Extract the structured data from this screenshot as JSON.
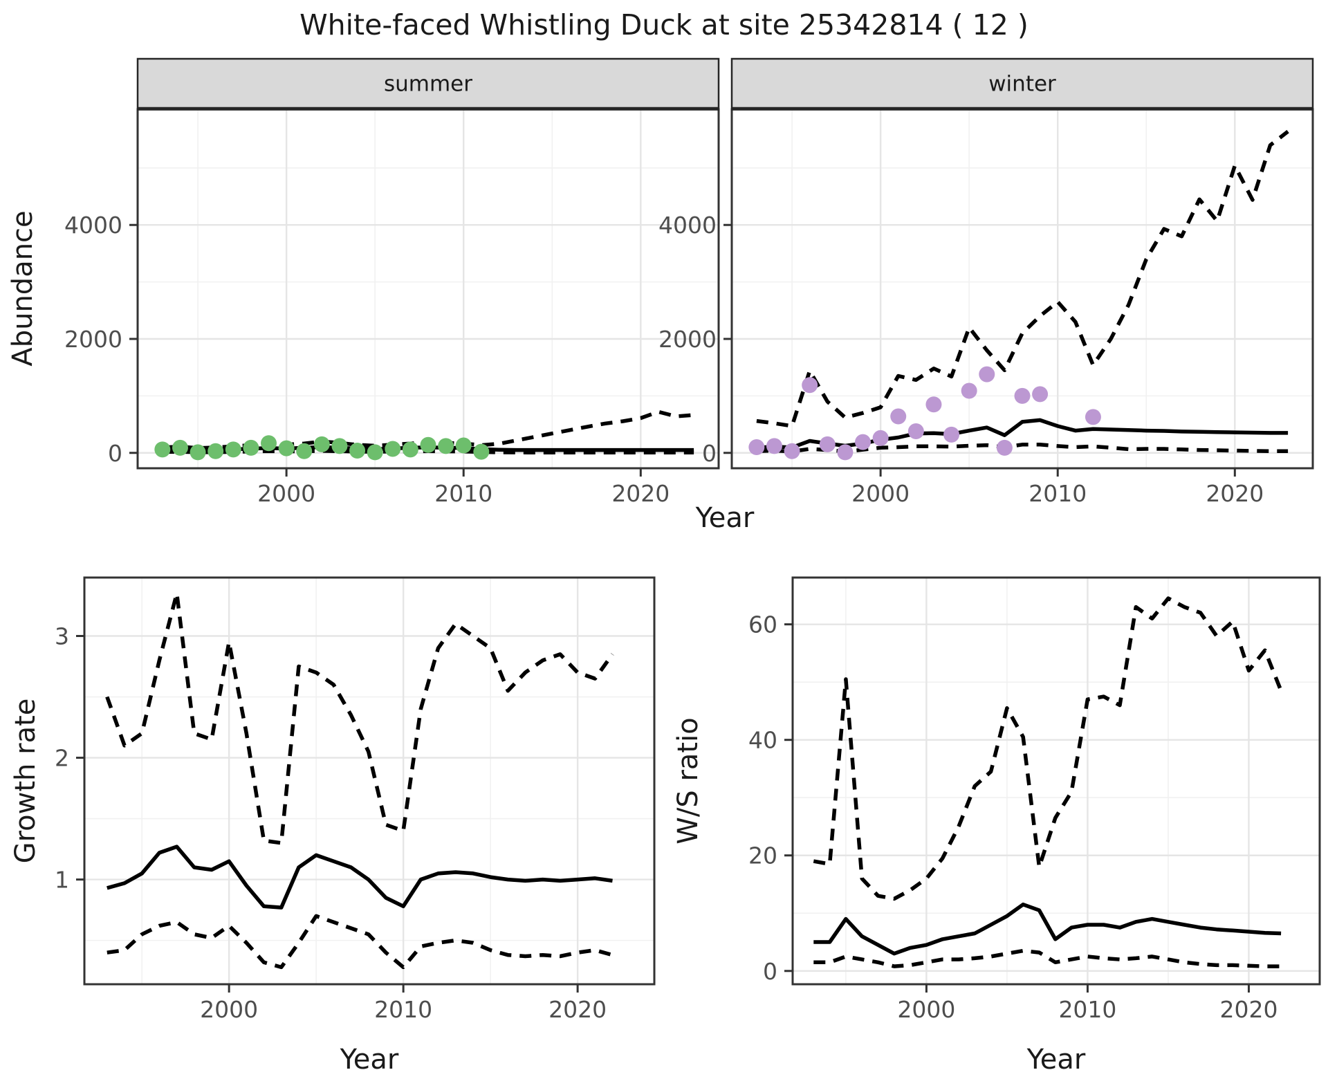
{
  "title": "White-faced Whistling Duck at site 25342814 ( 12 )",
  "colors": {
    "summer_points": "#6dbe6c",
    "winter_points": "#bc98d2",
    "line": "#000000",
    "strip_bg": "#d9d9d9",
    "strip_border": "#262626",
    "frame": "#333333",
    "axis_text": "#4d4d4d",
    "title_text": "#1a1a1a",
    "grid_major": "#e5e5e5",
    "grid_minor": "#f1f1f1"
  },
  "chart_data": [
    {
      "id": "abundance-summer",
      "type": "line",
      "strip": "summer",
      "xlabel": "Year",
      "ylabel": "Abundance",
      "xlim": [
        1991.6,
        2024.4
      ],
      "ylim": [
        -270,
        6030
      ],
      "xticks": [
        2000,
        2010,
        2020
      ],
      "yticks": [
        0,
        2000,
        4000
      ],
      "xminor": [
        1995,
        2005,
        2015
      ],
      "yminor": [
        1000,
        3000,
        5000
      ],
      "series": [
        {
          "name": "upper-ci",
          "style": "dashed",
          "x": [
            1993,
            1994,
            1995,
            1996,
            1997,
            1998,
            1999,
            2000,
            2001,
            2002,
            2003,
            2004,
            2005,
            2006,
            2007,
            2008,
            2009,
            2010,
            2011,
            2012,
            2013,
            2014,
            2015,
            2016,
            2017,
            2018,
            2019,
            2020,
            2021,
            2022,
            2023
          ],
          "values": [
            95,
            110,
            85,
            95,
            115,
            135,
            185,
            145,
            165,
            200,
            175,
            140,
            125,
            145,
            165,
            185,
            175,
            165,
            135,
            160,
            220,
            280,
            340,
            400,
            460,
            515,
            555,
            610,
            720,
            640,
            665
          ]
        },
        {
          "name": "median",
          "style": "solid",
          "x": [
            1993,
            1994,
            1995,
            1996,
            1997,
            1998,
            1999,
            2000,
            2001,
            2002,
            2003,
            2004,
            2005,
            2006,
            2007,
            2008,
            2009,
            2010,
            2011,
            2012,
            2013,
            2014,
            2015,
            2016,
            2017,
            2018,
            2019,
            2020,
            2021,
            2022,
            2023
          ],
          "values": [
            45,
            55,
            45,
            50,
            60,
            75,
            85,
            75,
            90,
            100,
            90,
            75,
            65,
            75,
            90,
            95,
            90,
            85,
            65,
            55,
            50,
            50,
            50,
            50,
            50,
            50,
            50,
            50,
            50,
            50,
            50
          ]
        },
        {
          "name": "lower-ci",
          "style": "dashed",
          "x": [
            1993,
            1994,
            1995,
            1996,
            1997,
            1998,
            1999,
            2000,
            2001,
            2002,
            2003,
            2004,
            2005,
            2006,
            2007,
            2008,
            2009,
            2010,
            2011,
            2012,
            2013,
            2014,
            2015,
            2016,
            2017,
            2018,
            2019,
            2020,
            2021,
            2022,
            2023
          ],
          "values": [
            15,
            20,
            10,
            12,
            18,
            25,
            30,
            25,
            30,
            35,
            30,
            22,
            18,
            25,
            28,
            30,
            28,
            25,
            15,
            10,
            8,
            6,
            5,
            5,
            5,
            5,
            5,
            5,
            5,
            5,
            5
          ]
        },
        {
          "name": "observed-counts",
          "style": "points",
          "color_key": "summer_points",
          "x": [
            1993,
            1994,
            1995,
            1996,
            1997,
            1998,
            1999,
            2000,
            2001,
            2002,
            2003,
            2004,
            2005,
            2006,
            2007,
            2008,
            2009,
            2010,
            2011
          ],
          "values": [
            60,
            90,
            10,
            30,
            60,
            90,
            170,
            80,
            30,
            150,
            120,
            40,
            10,
            70,
            60,
            140,
            120,
            130,
            20
          ]
        }
      ]
    },
    {
      "id": "abundance-winter",
      "type": "line",
      "strip": "winter",
      "xlabel": "Year",
      "ylabel": "Abundance",
      "xlim": [
        1991.6,
        2024.4
      ],
      "ylim": [
        -270,
        6030
      ],
      "xticks": [
        2000,
        2010,
        2020
      ],
      "yticks": [
        0,
        2000,
        4000
      ],
      "xminor": [
        1995,
        2005,
        2015
      ],
      "yminor": [
        1000,
        3000,
        5000
      ],
      "series": [
        {
          "name": "upper-ci",
          "style": "dashed",
          "x": [
            1993,
            1994,
            1995,
            1996,
            1997,
            1998,
            1999,
            2000,
            2001,
            2002,
            2003,
            2004,
            2005,
            2006,
            2007,
            2008,
            2009,
            2010,
            2011,
            2012,
            2013,
            2014,
            2015,
            2016,
            2017,
            2018,
            2019,
            2020,
            2021,
            2022,
            2023
          ],
          "values": [
            560,
            520,
            470,
            1440,
            900,
            620,
            700,
            800,
            1350,
            1280,
            1480,
            1340,
            2200,
            1800,
            1450,
            2100,
            2400,
            2650,
            2300,
            1540,
            2000,
            2600,
            3400,
            3930,
            3800,
            4450,
            4070,
            5040,
            4440,
            5400,
            5640
          ]
        },
        {
          "name": "median",
          "style": "solid",
          "x": [
            1993,
            1994,
            1995,
            1996,
            1997,
            1998,
            1999,
            2000,
            2001,
            2002,
            2003,
            2004,
            2005,
            2006,
            2007,
            2008,
            2009,
            2010,
            2011,
            2012,
            2013,
            2014,
            2015,
            2016,
            2017,
            2018,
            2019,
            2020,
            2021,
            2022,
            2023
          ],
          "values": [
            90,
            110,
            95,
            210,
            165,
            125,
            165,
            230,
            270,
            340,
            345,
            330,
            390,
            445,
            310,
            545,
            575,
            470,
            390,
            420,
            410,
            400,
            390,
            385,
            375,
            370,
            365,
            360,
            355,
            350,
            350
          ]
        },
        {
          "name": "lower-ci",
          "style": "dashed",
          "x": [
            1993,
            1994,
            1995,
            1996,
            1997,
            1998,
            1999,
            2000,
            2001,
            2002,
            2003,
            2004,
            2005,
            2006,
            2007,
            2008,
            2009,
            2010,
            2011,
            2012,
            2013,
            2014,
            2015,
            2016,
            2017,
            2018,
            2019,
            2020,
            2021,
            2022,
            2023
          ],
          "values": [
            30,
            40,
            25,
            70,
            50,
            25,
            55,
            90,
            100,
            115,
            115,
            110,
            125,
            135,
            100,
            145,
            145,
            120,
            100,
            115,
            90,
            65,
            70,
            70,
            60,
            50,
            45,
            40,
            35,
            30,
            30
          ]
        },
        {
          "name": "observed-counts",
          "style": "points",
          "color_key": "winter_points",
          "x": [
            1993,
            1994,
            1995,
            1996,
            1997,
            1998,
            1999,
            2000,
            2001,
            2002,
            2003,
            2004,
            2005,
            2006,
            2007,
            2008,
            2009,
            2012
          ],
          "values": [
            100,
            120,
            30,
            1190,
            150,
            10,
            190,
            260,
            640,
            380,
            850,
            320,
            1090,
            1380,
            90,
            1000,
            1030,
            630
          ]
        }
      ]
    },
    {
      "id": "growth-rate",
      "type": "line",
      "strip": null,
      "xlabel": "Year",
      "ylabel": "Growth rate",
      "xlim": [
        1991.7,
        2024.4
      ],
      "ylim": [
        0.14,
        3.48
      ],
      "xticks": [
        2000,
        2010,
        2020
      ],
      "yticks": [
        1,
        2,
        3
      ],
      "xminor": [
        1995,
        2005,
        2015
      ],
      "yminor": [
        0.5,
        1.5,
        2.5
      ],
      "series": [
        {
          "name": "upper-ci",
          "style": "dashed",
          "x": [
            1993,
            1994,
            1995,
            1996,
            1997,
            1998,
            1999,
            2000,
            2001,
            2002,
            2003,
            2004,
            2005,
            2006,
            2007,
            2008,
            2009,
            2010,
            2011,
            2012,
            2013,
            2014,
            2015,
            2016,
            2017,
            2018,
            2019,
            2020,
            2021,
            2022
          ],
          "values": [
            2.5,
            2.1,
            2.2,
            2.8,
            3.35,
            2.2,
            2.15,
            2.95,
            2.2,
            1.32,
            1.3,
            2.75,
            2.7,
            2.6,
            2.35,
            2.05,
            1.45,
            1.4,
            2.4,
            2.9,
            3.1,
            3.0,
            2.9,
            2.55,
            2.7,
            2.8,
            2.85,
            2.7,
            2.65,
            2.85
          ]
        },
        {
          "name": "median",
          "style": "solid",
          "x": [
            1993,
            1994,
            1995,
            1996,
            1997,
            1998,
            1999,
            2000,
            2001,
            2002,
            2003,
            2004,
            2005,
            2006,
            2007,
            2008,
            2009,
            2010,
            2011,
            2012,
            2013,
            2014,
            2015,
            2016,
            2017,
            2018,
            2019,
            2020,
            2021,
            2022
          ],
          "values": [
            0.93,
            0.97,
            1.05,
            1.22,
            1.27,
            1.1,
            1.08,
            1.15,
            0.95,
            0.78,
            0.77,
            1.1,
            1.2,
            1.15,
            1.1,
            1.0,
            0.85,
            0.78,
            1.0,
            1.05,
            1.06,
            1.05,
            1.02,
            1.0,
            0.99,
            1.0,
            0.99,
            1.0,
            1.01,
            0.99
          ]
        },
        {
          "name": "lower-ci",
          "style": "dashed",
          "x": [
            1993,
            1994,
            1995,
            1996,
            1997,
            1998,
            1999,
            2000,
            2001,
            2002,
            2003,
            2004,
            2005,
            2006,
            2007,
            2008,
            2009,
            2010,
            2011,
            2012,
            2013,
            2014,
            2015,
            2016,
            2017,
            2018,
            2019,
            2020,
            2021,
            2022
          ],
          "values": [
            0.4,
            0.42,
            0.55,
            0.62,
            0.65,
            0.55,
            0.52,
            0.62,
            0.48,
            0.32,
            0.28,
            0.48,
            0.7,
            0.65,
            0.6,
            0.55,
            0.4,
            0.28,
            0.45,
            0.48,
            0.5,
            0.48,
            0.42,
            0.38,
            0.37,
            0.38,
            0.37,
            0.4,
            0.42,
            0.38
          ]
        }
      ]
    },
    {
      "id": "ws-ratio",
      "type": "line",
      "strip": null,
      "xlabel": "Year",
      "ylabel": "W/S ratio",
      "xlim": [
        1991.7,
        2024.4
      ],
      "ylim": [
        -2.3,
        68.1
      ],
      "xticks": [
        2000,
        2010,
        2020
      ],
      "yticks": [
        0,
        20,
        40,
        60
      ],
      "xminor": [
        1995,
        2005,
        2015
      ],
      "yminor": [
        10,
        30,
        50
      ],
      "series": [
        {
          "name": "upper-ci",
          "style": "dashed",
          "x": [
            1993,
            1994,
            1995,
            1996,
            1997,
            1998,
            1999,
            2000,
            2001,
            2002,
            2003,
            2004,
            2005,
            2006,
            2007,
            2008,
            2009,
            2010,
            2011,
            2012,
            2013,
            2014,
            2015,
            2016,
            2017,
            2018,
            2019,
            2020,
            2021,
            2022
          ],
          "values": [
            19,
            18.5,
            50.5,
            16,
            13,
            12.5,
            14,
            16,
            19.5,
            25,
            32,
            34.5,
            45.5,
            40.5,
            18,
            26.5,
            31,
            47,
            47.5,
            46,
            63,
            61,
            64.5,
            63,
            62,
            58,
            60.5,
            52,
            55.5,
            48.5
          ]
        },
        {
          "name": "median",
          "style": "solid",
          "x": [
            1993,
            1994,
            1995,
            1996,
            1997,
            1998,
            1999,
            2000,
            2001,
            2002,
            2003,
            2004,
            2005,
            2006,
            2007,
            2008,
            2009,
            2010,
            2011,
            2012,
            2013,
            2014,
            2015,
            2016,
            2017,
            2018,
            2019,
            2020,
            2021,
            2022
          ],
          "values": [
            5,
            5,
            9,
            6,
            4.5,
            3,
            4,
            4.5,
            5.5,
            6,
            6.5,
            8,
            9.5,
            11.5,
            10.5,
            5.5,
            7.5,
            8,
            8,
            7.5,
            8.5,
            9,
            8.5,
            8,
            7.5,
            7.2,
            7,
            6.8,
            6.6,
            6.5
          ]
        },
        {
          "name": "lower-ci",
          "style": "dashed",
          "x": [
            1993,
            1994,
            1995,
            1996,
            1997,
            1998,
            1999,
            2000,
            2001,
            2002,
            2003,
            2004,
            2005,
            2006,
            2007,
            2008,
            2009,
            2010,
            2011,
            2012,
            2013,
            2014,
            2015,
            2016,
            2017,
            2018,
            2019,
            2020,
            2021,
            2022
          ],
          "values": [
            1.5,
            1.5,
            2.5,
            2,
            1.5,
            0.8,
            1,
            1.5,
            2,
            2,
            2.2,
            2.5,
            3,
            3.5,
            3.2,
            1.5,
            2,
            2.5,
            2.2,
            2,
            2.2,
            2.5,
            2,
            1.5,
            1.2,
            1,
            1,
            0.9,
            0.8,
            0.8
          ]
        }
      ]
    }
  ]
}
